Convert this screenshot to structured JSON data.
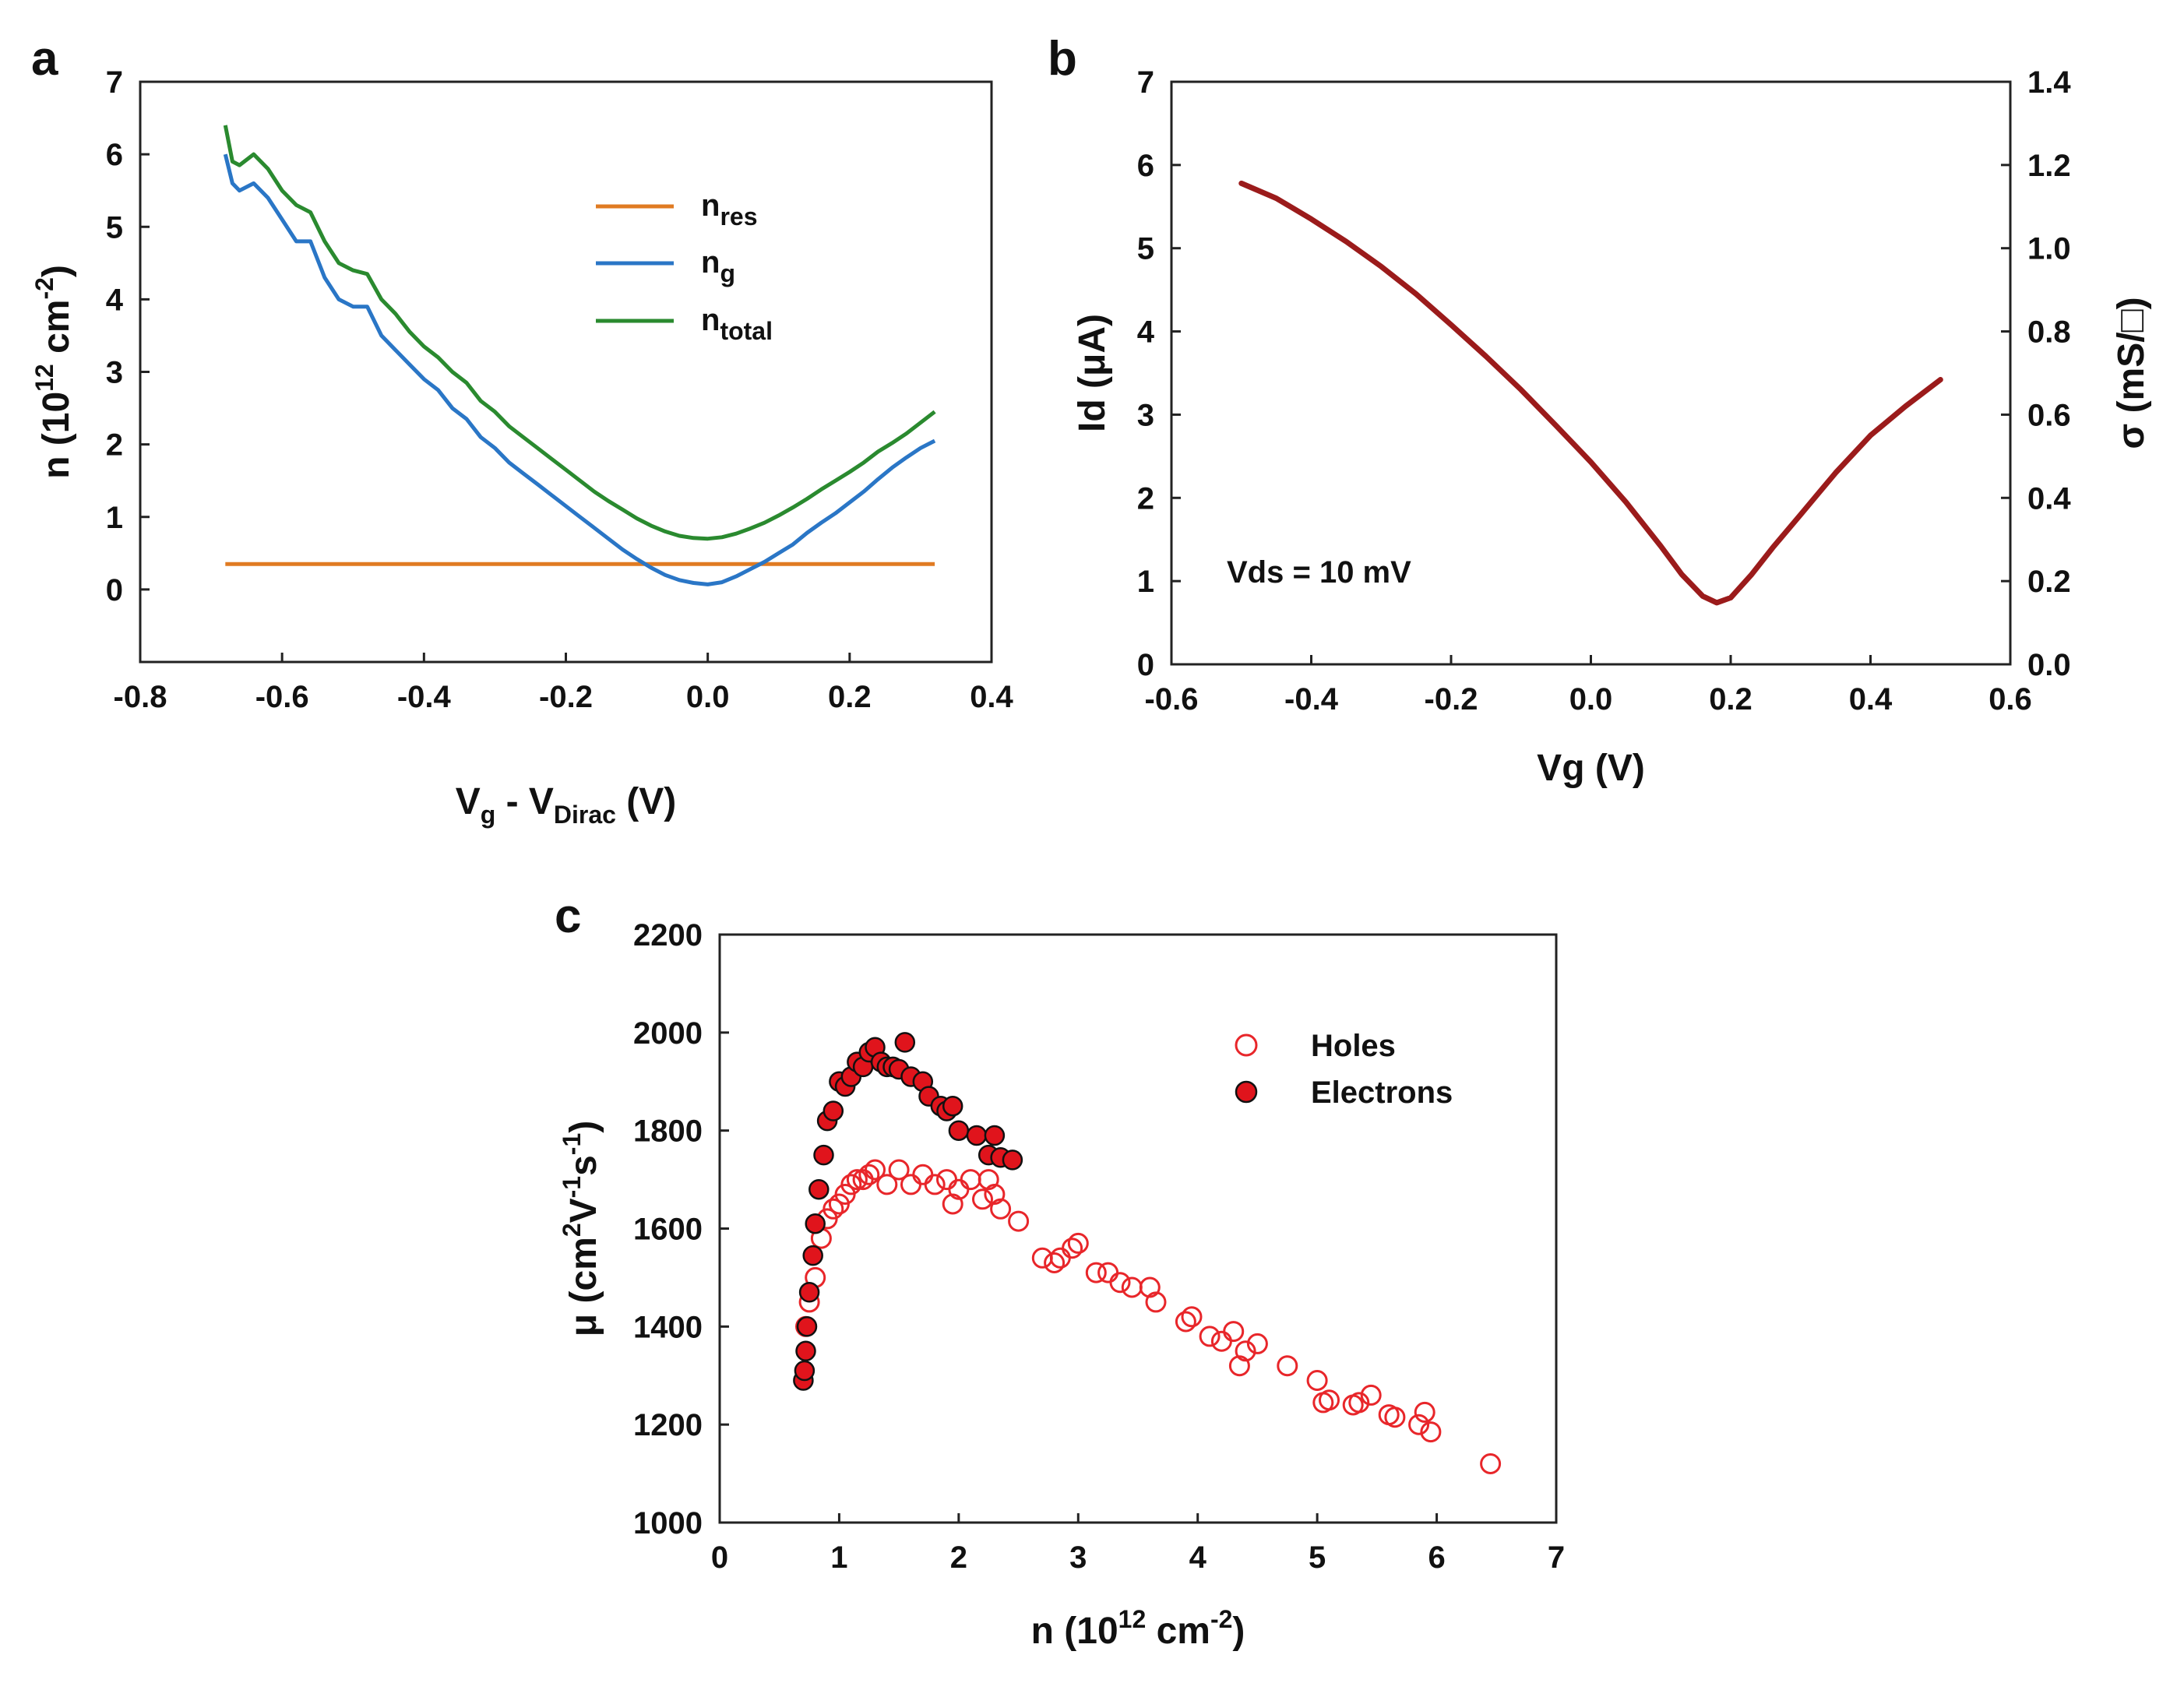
{
  "chart_data": [
    {
      "panel": "a",
      "type": "line",
      "xlabel_parts": [
        "V",
        "g",
        " - V",
        "Dirac",
        " (V)"
      ],
      "ylabel_parts": [
        "n (10",
        "12",
        " cm",
        "-2",
        ")"
      ],
      "xlim": [
        -0.8,
        0.4
      ],
      "ylim": [
        -1,
        7
      ],
      "xticks": [
        -0.8,
        -0.6,
        -0.4,
        -0.2,
        0.0,
        0.2,
        0.4
      ],
      "xtick_labels": [
        "-0.8",
        "-0.6",
        "-0.4",
        "-0.2",
        "0.0",
        "0.2",
        "0.4"
      ],
      "yticks": [
        0,
        1,
        2,
        3,
        4,
        5,
        6,
        7
      ],
      "ytick_labels": [
        "0",
        "1",
        "2",
        "3",
        "4",
        "5",
        "6",
        "7"
      ],
      "legend_position": "upper-right",
      "series": [
        {
          "name": "n_res",
          "label_main": "n",
          "label_sub": "res",
          "color": "#E07B22",
          "x": [
            -0.68,
            0.32
          ],
          "y": [
            0.35,
            0.35
          ]
        },
        {
          "name": "n_g",
          "label_main": "n",
          "label_sub": "g",
          "color": "#2A76C6",
          "x": [
            -0.68,
            -0.67,
            -0.66,
            -0.64,
            -0.62,
            -0.6,
            -0.58,
            -0.56,
            -0.54,
            -0.52,
            -0.5,
            -0.48,
            -0.46,
            -0.44,
            -0.42,
            -0.4,
            -0.38,
            -0.36,
            -0.34,
            -0.32,
            -0.3,
            -0.28,
            -0.26,
            -0.24,
            -0.22,
            -0.2,
            -0.18,
            -0.16,
            -0.14,
            -0.12,
            -0.1,
            -0.08,
            -0.06,
            -0.04,
            -0.02,
            0.0,
            0.02,
            0.04,
            0.06,
            0.08,
            0.1,
            0.12,
            0.14,
            0.16,
            0.18,
            0.2,
            0.22,
            0.24,
            0.26,
            0.28,
            0.3,
            0.32
          ],
          "y": [
            6.0,
            5.6,
            5.5,
            5.6,
            5.4,
            5.1,
            4.8,
            4.8,
            4.3,
            4.0,
            3.9,
            3.9,
            3.5,
            3.3,
            3.1,
            2.9,
            2.75,
            2.5,
            2.35,
            2.1,
            1.95,
            1.75,
            1.6,
            1.45,
            1.3,
            1.15,
            1.0,
            0.85,
            0.7,
            0.55,
            0.42,
            0.3,
            0.2,
            0.13,
            0.09,
            0.07,
            0.1,
            0.18,
            0.28,
            0.38,
            0.5,
            0.62,
            0.78,
            0.92,
            1.05,
            1.2,
            1.35,
            1.52,
            1.68,
            1.82,
            1.95,
            2.05
          ]
        },
        {
          "name": "n_total",
          "label_main": "n",
          "label_sub": "total",
          "color": "#2A8A2F",
          "x": [
            -0.68,
            -0.67,
            -0.66,
            -0.64,
            -0.62,
            -0.6,
            -0.58,
            -0.56,
            -0.54,
            -0.52,
            -0.5,
            -0.48,
            -0.46,
            -0.44,
            -0.42,
            -0.4,
            -0.38,
            -0.36,
            -0.34,
            -0.32,
            -0.3,
            -0.28,
            -0.26,
            -0.24,
            -0.22,
            -0.2,
            -0.18,
            -0.16,
            -0.14,
            -0.12,
            -0.1,
            -0.08,
            -0.06,
            -0.04,
            -0.02,
            0.0,
            0.02,
            0.04,
            0.06,
            0.08,
            0.1,
            0.12,
            0.14,
            0.16,
            0.18,
            0.2,
            0.22,
            0.24,
            0.26,
            0.28,
            0.3,
            0.32
          ],
          "y": [
            6.4,
            5.9,
            5.85,
            6.0,
            5.8,
            5.5,
            5.3,
            5.2,
            4.8,
            4.5,
            4.4,
            4.35,
            4.0,
            3.8,
            3.55,
            3.35,
            3.2,
            3.0,
            2.85,
            2.6,
            2.45,
            2.25,
            2.1,
            1.95,
            1.8,
            1.65,
            1.5,
            1.35,
            1.22,
            1.1,
            0.98,
            0.88,
            0.8,
            0.74,
            0.71,
            0.7,
            0.72,
            0.77,
            0.84,
            0.92,
            1.02,
            1.13,
            1.25,
            1.38,
            1.5,
            1.62,
            1.75,
            1.9,
            2.02,
            2.15,
            2.3,
            2.45
          ]
        }
      ]
    },
    {
      "panel": "b",
      "type": "line",
      "annotation": "Vds = 10 mV",
      "xlabel": "Vg (V)",
      "ylabel_parts": [
        "Id (",
        "μ",
        "A)"
      ],
      "y2label": "σ (mS/□)",
      "xlim": [
        -0.6,
        0.6
      ],
      "ylim": [
        0,
        7
      ],
      "y2lim": [
        0.0,
        1.4
      ],
      "xticks": [
        -0.6,
        -0.4,
        -0.2,
        0.0,
        0.2,
        0.4,
        0.6
      ],
      "xtick_labels": [
        "-0.6",
        "-0.4",
        "-0.2",
        "0.0",
        "0.2",
        "0.4",
        "0.6"
      ],
      "yticks": [
        0,
        1,
        2,
        3,
        4,
        5,
        6,
        7
      ],
      "ytick_labels": [
        "0",
        "1",
        "2",
        "3",
        "4",
        "5",
        "6",
        "7"
      ],
      "y2ticks": [
        0.0,
        0.2,
        0.4,
        0.6,
        0.8,
        1.0,
        1.2,
        1.4
      ],
      "y2tick_labels": [
        "0.0",
        "0.2",
        "0.4",
        "0.6",
        "0.8",
        "1.0",
        "1.2",
        "1.4"
      ],
      "series": [
        {
          "name": "Id",
          "color": "#9B1B1B",
          "x": [
            -0.5,
            -0.45,
            -0.4,
            -0.35,
            -0.3,
            -0.25,
            -0.2,
            -0.15,
            -0.1,
            -0.05,
            0.0,
            0.05,
            0.1,
            0.13,
            0.16,
            0.18,
            0.2,
            0.23,
            0.26,
            0.3,
            0.35,
            0.4,
            0.45,
            0.5
          ],
          "y": [
            5.78,
            5.6,
            5.35,
            5.08,
            4.78,
            4.45,
            4.08,
            3.7,
            3.3,
            2.87,
            2.43,
            1.95,
            1.42,
            1.08,
            0.82,
            0.74,
            0.8,
            1.08,
            1.4,
            1.8,
            2.3,
            2.75,
            3.1,
            3.42
          ]
        }
      ]
    },
    {
      "panel": "c",
      "type": "scatter",
      "xlabel_parts": [
        "n (10",
        "12",
        " cm",
        "-2",
        ")"
      ],
      "ylabel_parts": [
        "μ (cm",
        "2",
        "V",
        "-1",
        "s",
        "-1",
        ")"
      ],
      "xlim": [
        0,
        7
      ],
      "ylim": [
        1000,
        2200
      ],
      "xticks": [
        0,
        1,
        2,
        3,
        4,
        5,
        6,
        7
      ],
      "xtick_labels": [
        "0",
        "1",
        "2",
        "3",
        "4",
        "5",
        "6",
        "7"
      ],
      "yticks": [
        1000,
        1200,
        1400,
        1600,
        1800,
        2000,
        2200
      ],
      "ytick_labels": [
        "1000",
        "1200",
        "1400",
        "1600",
        "1800",
        "2000",
        "2200"
      ],
      "legend_position": "upper-right",
      "series": [
        {
          "name": "Holes",
          "marker": "open-circle",
          "color": "#E8262A",
          "x": [
            0.72,
            0.75,
            0.8,
            0.85,
            0.9,
            0.95,
            1.0,
            1.05,
            1.1,
            1.15,
            1.2,
            1.25,
            1.3,
            1.4,
            1.5,
            1.6,
            1.7,
            1.8,
            1.9,
            1.95,
            2.0,
            2.1,
            2.2,
            2.25,
            2.3,
            2.35,
            2.5,
            2.7,
            2.8,
            2.85,
            2.95,
            3.0,
            3.15,
            3.25,
            3.35,
            3.45,
            3.6,
            3.65,
            3.9,
            3.95,
            4.1,
            4.2,
            4.3,
            4.35,
            4.4,
            4.5,
            4.75,
            5.0,
            5.05,
            5.1,
            5.3,
            5.35,
            5.45,
            5.6,
            5.65,
            5.85,
            5.9,
            5.95,
            6.45
          ],
          "y": [
            1400,
            1450,
            1500,
            1580,
            1620,
            1640,
            1650,
            1670,
            1690,
            1700,
            1700,
            1710,
            1720,
            1690,
            1720,
            1690,
            1710,
            1690,
            1700,
            1650,
            1680,
            1700,
            1660,
            1700,
            1670,
            1640,
            1615,
            1540,
            1530,
            1540,
            1560,
            1570,
            1510,
            1510,
            1490,
            1480,
            1480,
            1450,
            1410,
            1420,
            1380,
            1370,
            1390,
            1320,
            1350,
            1365,
            1320,
            1290,
            1245,
            1250,
            1240,
            1245,
            1260,
            1220,
            1215,
            1200,
            1225,
            1185,
            1120
          ]
        },
        {
          "name": "Electrons",
          "marker": "filled-circle",
          "color": "#E0141C",
          "x": [
            0.7,
            0.71,
            0.72,
            0.73,
            0.75,
            0.78,
            0.8,
            0.83,
            0.87,
            0.9,
            0.95,
            1.0,
            1.05,
            1.1,
            1.15,
            1.2,
            1.25,
            1.3,
            1.35,
            1.4,
            1.45,
            1.5,
            1.55,
            1.6,
            1.7,
            1.75,
            1.85,
            1.9,
            1.95,
            2.0,
            2.15,
            2.25,
            2.3,
            2.35,
            2.45
          ],
          "y": [
            1290,
            1310,
            1350,
            1400,
            1470,
            1545,
            1610,
            1680,
            1750,
            1820,
            1840,
            1900,
            1890,
            1910,
            1940,
            1930,
            1960,
            1970,
            1940,
            1930,
            1930,
            1925,
            1980,
            1910,
            1900,
            1870,
            1850,
            1840,
            1850,
            1800,
            1790,
            1750,
            1790,
            1745,
            1740
          ]
        }
      ]
    }
  ]
}
